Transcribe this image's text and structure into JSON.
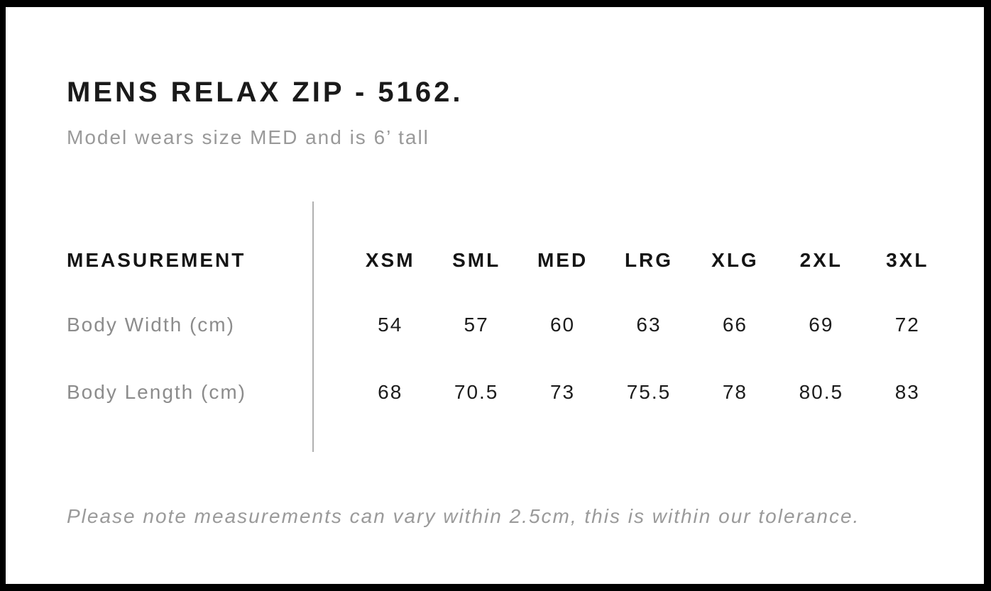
{
  "header": {
    "title": "MENS RELAX ZIP - 5162.",
    "subtitle": "Model wears size MED and is 6’ tall"
  },
  "table": {
    "measurement_header": "MEASUREMENT",
    "size_headers": [
      "XSM",
      "SML",
      "MED",
      "LRG",
      "XLG",
      "2XL",
      "3XL"
    ],
    "rows": [
      {
        "label": "Body Width (cm)",
        "values": [
          "54",
          "57",
          "60",
          "63",
          "66",
          "69",
          "72"
        ]
      },
      {
        "label": "Body Length (cm)",
        "values": [
          "68",
          "70.5",
          "73",
          "75.5",
          "78",
          "80.5",
          "83"
        ]
      }
    ]
  },
  "footnote": {
    "text": "Please note measurements can vary within 2.5cm, this is within our tolerance."
  },
  "colors": {
    "frame": "#000000",
    "background": "#ffffff",
    "heading_text": "#1a1a1a",
    "muted_text": "#999999",
    "value_text": "#1c1c1c",
    "divider": "#b0b0b0"
  }
}
